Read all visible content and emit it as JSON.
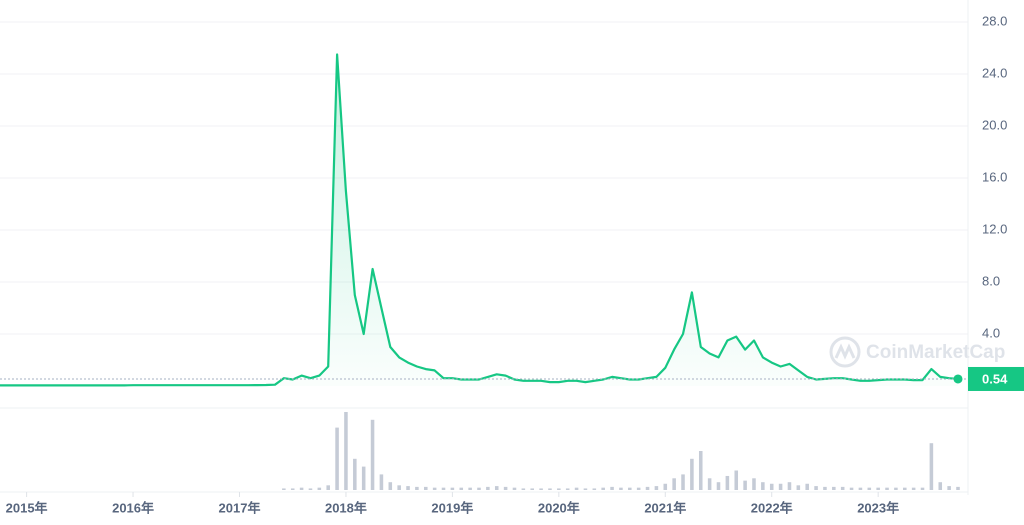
{
  "chart_data": {
    "type": "line",
    "watermark": "CoinMarketCap",
    "x": [
      "2014-10",
      "2014-11",
      "2014-12",
      "2015-01",
      "2015-02",
      "2015-03",
      "2015-04",
      "2015-05",
      "2015-06",
      "2015-07",
      "2015-08",
      "2015-09",
      "2015-10",
      "2015-11",
      "2015-12",
      "2016-01",
      "2016-02",
      "2016-03",
      "2016-04",
      "2016-05",
      "2016-06",
      "2016-07",
      "2016-08",
      "2016-09",
      "2016-10",
      "2016-11",
      "2016-12",
      "2017-01",
      "2017-02",
      "2017-03",
      "2017-04",
      "2017-05",
      "2017-06",
      "2017-07",
      "2017-08",
      "2017-09",
      "2017-10",
      "2017-11",
      "2017-12",
      "2018-01",
      "2018-02",
      "2018-03",
      "2018-04",
      "2018-05",
      "2018-06",
      "2018-07",
      "2018-08",
      "2018-09",
      "2018-10",
      "2018-11",
      "2018-12",
      "2019-01",
      "2019-02",
      "2019-03",
      "2019-04",
      "2019-05",
      "2019-06",
      "2019-07",
      "2019-08",
      "2019-09",
      "2019-10",
      "2019-11",
      "2019-12",
      "2020-01",
      "2020-02",
      "2020-03",
      "2020-04",
      "2020-05",
      "2020-06",
      "2020-07",
      "2020-08",
      "2020-09",
      "2020-10",
      "2020-11",
      "2020-12",
      "2021-01",
      "2021-02",
      "2021-03",
      "2021-04",
      "2021-05",
      "2021-06",
      "2021-07",
      "2021-08",
      "2021-09",
      "2021-10",
      "2021-11",
      "2021-12",
      "2022-01",
      "2022-02",
      "2022-03",
      "2022-04",
      "2022-05",
      "2022-06",
      "2022-07",
      "2022-08",
      "2022-09",
      "2022-10",
      "2022-11",
      "2022-12",
      "2023-01",
      "2023-02",
      "2023-03",
      "2023-04",
      "2023-05",
      "2023-06",
      "2023-07",
      "2023-08",
      "2023-09",
      "2023-10"
    ],
    "series": [
      {
        "name": "price",
        "color": "#16c784",
        "values": [
          0.05,
          0.05,
          0.05,
          0.05,
          0.05,
          0.05,
          0.05,
          0.05,
          0.05,
          0.05,
          0.05,
          0.05,
          0.05,
          0.05,
          0.05,
          0.06,
          0.06,
          0.06,
          0.06,
          0.06,
          0.06,
          0.06,
          0.06,
          0.06,
          0.06,
          0.06,
          0.06,
          0.06,
          0.06,
          0.07,
          0.08,
          0.1,
          0.6,
          0.5,
          0.8,
          0.6,
          0.8,
          1.5,
          25.5,
          15,
          7,
          4,
          9,
          6,
          3,
          2.2,
          1.8,
          1.5,
          1.3,
          1.2,
          0.6,
          0.6,
          0.5,
          0.5,
          0.5,
          0.7,
          0.9,
          0.8,
          0.5,
          0.4,
          0.4,
          0.4,
          0.3,
          0.3,
          0.4,
          0.4,
          0.3,
          0.4,
          0.5,
          0.7,
          0.6,
          0.5,
          0.5,
          0.6,
          0.7,
          1.4,
          2.8,
          4,
          7.2,
          3,
          2.5,
          2.2,
          3.5,
          3.8,
          2.8,
          3.5,
          2.2,
          1.8,
          1.5,
          1.7,
          1.2,
          0.7,
          0.5,
          0.55,
          0.6,
          0.6,
          0.5,
          0.4,
          0.4,
          0.45,
          0.5,
          0.5,
          0.5,
          0.45,
          0.45,
          1.3,
          0.7,
          0.6,
          0.54
        ]
      },
      {
        "name": "volume",
        "color": "#c5cbd6",
        "axis": "y2",
        "values": [
          0,
          0,
          0,
          0,
          0,
          0,
          0,
          0,
          0,
          0,
          0,
          0,
          0,
          0,
          0,
          0,
          0,
          0,
          0,
          0,
          0,
          0,
          0,
          0,
          0,
          0,
          0,
          0,
          0,
          0,
          0,
          0,
          2,
          2,
          3,
          2,
          3,
          6,
          80,
          100,
          40,
          30,
          90,
          20,
          10,
          6,
          5,
          4,
          4,
          3,
          3,
          3,
          3,
          3,
          3,
          4,
          5,
          4,
          3,
          2,
          2,
          2,
          2,
          2,
          2,
          3,
          2,
          2,
          3,
          4,
          3,
          3,
          3,
          4,
          5,
          8,
          15,
          20,
          40,
          50,
          15,
          10,
          18,
          25,
          12,
          15,
          10,
          8,
          8,
          10,
          6,
          8,
          5,
          4,
          4,
          4,
          3,
          3,
          3,
          3,
          3,
          3,
          3,
          3,
          3,
          60,
          10,
          5,
          4
        ]
      }
    ],
    "xlim": [
      "2014-10",
      "2023-10"
    ],
    "xticks": [
      {
        "value": "2015-01",
        "label": "2015年"
      },
      {
        "value": "2016-01",
        "label": "2016年"
      },
      {
        "value": "2017-01",
        "label": "2017年"
      },
      {
        "value": "2018-01",
        "label": "2018年"
      },
      {
        "value": "2019-01",
        "label": "2019年"
      },
      {
        "value": "2020-01",
        "label": "2020年"
      },
      {
        "value": "2021-01",
        "label": "2021年"
      },
      {
        "value": "2022-01",
        "label": "2022年"
      },
      {
        "value": "2023-01",
        "label": "2023年"
      }
    ],
    "ylim": [
      0,
      28
    ],
    "yticks": [
      {
        "value": 4,
        "label": "4.0"
      },
      {
        "value": 8,
        "label": "8.0"
      },
      {
        "value": 12,
        "label": "12.0"
      },
      {
        "value": 16,
        "label": "16.0"
      },
      {
        "value": 20,
        "label": "20.0"
      },
      {
        "value": 24,
        "label": "24.0"
      },
      {
        "value": 28,
        "label": "28.0"
      }
    ],
    "y2lim": [
      0,
      100
    ],
    "grid": true
  }
}
